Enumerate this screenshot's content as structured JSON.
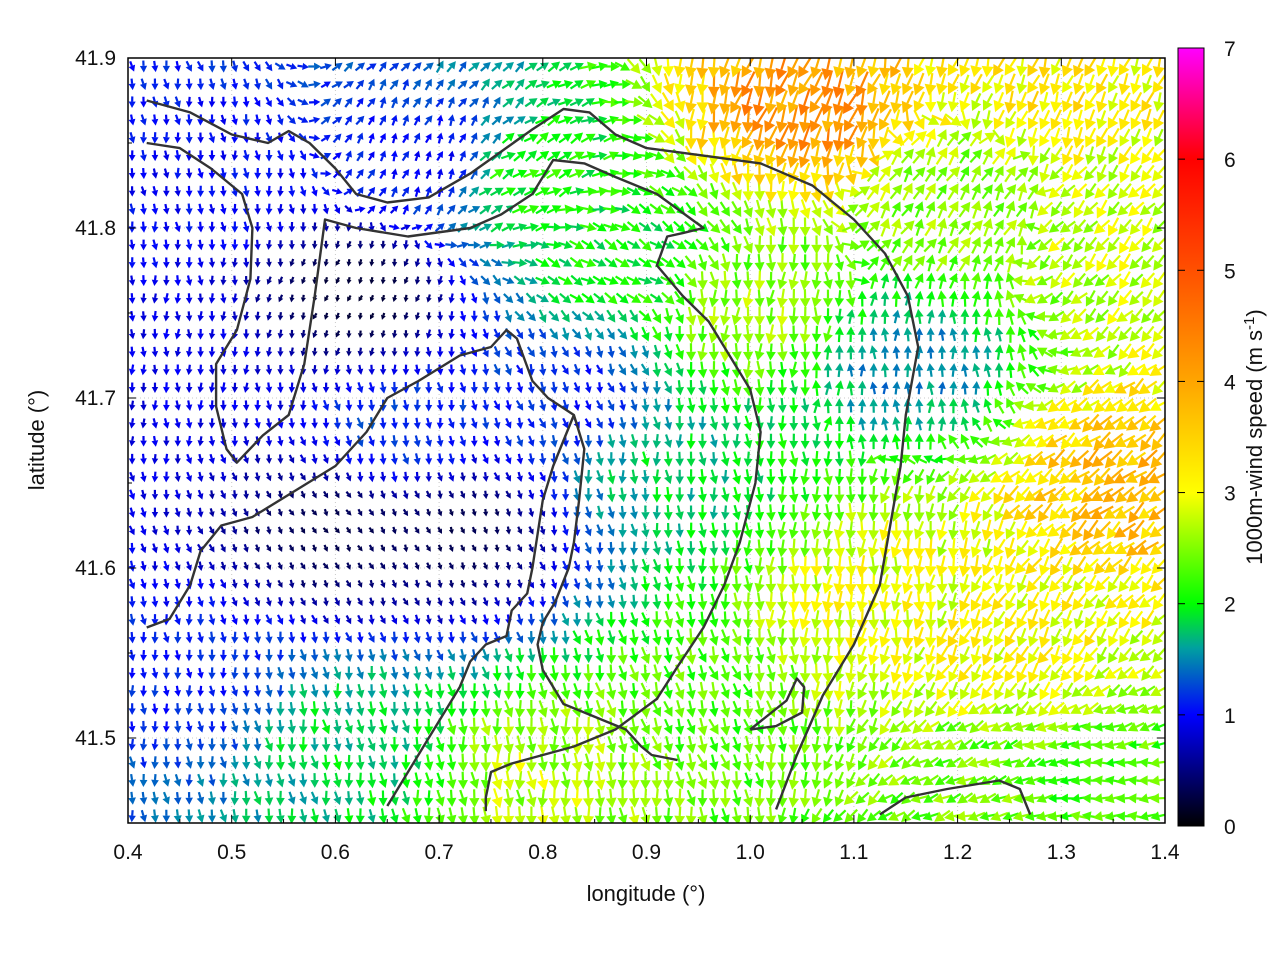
{
  "chart_data": {
    "type": "quiver",
    "xlabel": "longitude (°)",
    "ylabel": "latitude (°)",
    "xlim": [
      0.4,
      1.4
    ],
    "ylim": [
      41.45,
      41.9
    ],
    "x_ticks": [
      "0.4",
      "0.5",
      "0.6",
      "0.7",
      "0.8",
      "0.9",
      "1.0",
      "1.1",
      "1.2",
      "1.3",
      "1.4"
    ],
    "y_ticks": [
      "41.5",
      "41.6",
      "41.7",
      "41.8",
      "41.9"
    ],
    "grid": true,
    "colorbar": {
      "label_main": "1000m-wind speed (m s",
      "label_sup": "-1",
      "label_close": ")",
      "range": [
        0,
        7
      ],
      "ticks": [
        "0",
        "1",
        "2",
        "3",
        "4",
        "5",
        "6",
        "7"
      ],
      "stops": [
        {
          "v": 0,
          "c": "#000000"
        },
        {
          "v": 1,
          "c": "#0000ff"
        },
        {
          "v": 1.6,
          "c": "#00a0a0"
        },
        {
          "v": 2,
          "c": "#00ff00"
        },
        {
          "v": 3,
          "c": "#ffff00"
        },
        {
          "v": 4,
          "c": "#ffa500"
        },
        {
          "v": 5,
          "c": "#ff5000"
        },
        {
          "v": 6,
          "c": "#ff0000"
        },
        {
          "v": 7,
          "c": "#ff00ff"
        }
      ]
    },
    "wind_field": {
      "lon_step": 0.011,
      "lat_step": 0.0105,
      "regions": [
        {
          "lon": 0.45,
          "lat": 41.72,
          "speed": 0.9,
          "dir_deg": 180
        },
        {
          "lon": 0.47,
          "lat": 41.82,
          "speed": 1.0,
          "dir_deg": 175
        },
        {
          "lon": 0.6,
          "lat": 41.62,
          "speed": 0.3,
          "dir_deg": 150
        },
        {
          "lon": 0.62,
          "lat": 41.76,
          "speed": 0.2,
          "dir_deg": 200
        },
        {
          "lon": 0.72,
          "lat": 41.62,
          "speed": 0.3,
          "dir_deg": 160
        },
        {
          "lon": 0.66,
          "lat": 41.68,
          "speed": 1.2,
          "dir_deg": 170
        },
        {
          "lon": 0.7,
          "lat": 41.84,
          "speed": 1.0,
          "dir_deg": 20
        },
        {
          "lon": 0.83,
          "lat": 41.7,
          "speed": 1.1,
          "dir_deg": 160
        },
        {
          "lon": 0.78,
          "lat": 41.83,
          "speed": 2.1,
          "dir_deg": 60
        },
        {
          "lon": 0.88,
          "lat": 41.78,
          "speed": 2.0,
          "dir_deg": 120
        },
        {
          "lon": 0.92,
          "lat": 41.66,
          "speed": 1.8,
          "dir_deg": 175
        },
        {
          "lon": 0.6,
          "lat": 41.5,
          "speed": 1.8,
          "dir_deg": 170
        },
        {
          "lon": 0.47,
          "lat": 41.53,
          "speed": 1.1,
          "dir_deg": 175
        },
        {
          "lon": 0.8,
          "lat": 41.48,
          "speed": 2.7,
          "dir_deg": 175
        },
        {
          "lon": 0.95,
          "lat": 41.52,
          "speed": 2.3,
          "dir_deg": 160
        },
        {
          "lon": 1.0,
          "lat": 41.75,
          "speed": 2.6,
          "dir_deg": 185
        },
        {
          "lon": 1.05,
          "lat": 41.87,
          "speed": 4.2,
          "dir_deg": 200
        },
        {
          "lon": 1.15,
          "lat": 41.72,
          "speed": 1.5,
          "dir_deg": 0
        },
        {
          "lon": 1.2,
          "lat": 41.82,
          "speed": 2.5,
          "dir_deg": 30
        },
        {
          "lon": 1.12,
          "lat": 41.58,
          "speed": 3.0,
          "dir_deg": 185
        },
        {
          "lon": 1.25,
          "lat": 41.55,
          "speed": 3.1,
          "dir_deg": 210
        },
        {
          "lon": 1.36,
          "lat": 41.65,
          "speed": 3.7,
          "dir_deg": 230
        },
        {
          "lon": 1.36,
          "lat": 41.8,
          "speed": 2.8,
          "dir_deg": 220
        },
        {
          "lon": 1.3,
          "lat": 41.88,
          "speed": 3.2,
          "dir_deg": 200
        },
        {
          "lon": 1.25,
          "lat": 41.48,
          "speed": 2.4,
          "dir_deg": 250
        },
        {
          "lon": 1.33,
          "lat": 41.47,
          "speed": 2.2,
          "dir_deg": 270
        }
      ]
    },
    "contours": [
      [
        [
          0.418,
          41.875
        ],
        [
          0.46,
          41.868
        ],
        [
          0.5,
          41.855
        ],
        [
          0.535,
          41.85
        ],
        [
          0.555,
          41.857
        ],
        [
          0.575,
          41.85
        ],
        [
          0.6,
          41.835
        ],
        [
          0.62,
          41.82
        ],
        [
          0.65,
          41.815
        ],
        [
          0.69,
          41.818
        ],
        [
          0.73,
          41.832
        ],
        [
          0.76,
          41.845
        ],
        [
          0.79,
          41.858
        ],
        [
          0.82,
          41.87
        ],
        [
          0.845,
          41.868
        ],
        [
          0.87,
          41.855
        ],
        [
          0.9,
          41.847
        ],
        [
          0.95,
          41.843
        ],
        [
          1.01,
          41.838
        ],
        [
          1.06,
          41.825
        ],
        [
          1.1,
          41.805
        ],
        [
          1.13,
          41.785
        ],
        [
          1.152,
          41.76
        ],
        [
          1.162,
          41.73
        ],
        [
          1.15,
          41.69
        ],
        [
          1.145,
          41.66
        ],
        [
          1.135,
          41.625
        ],
        [
          1.125,
          41.59
        ],
        [
          1.1,
          41.555
        ],
        [
          1.07,
          41.525
        ],
        [
          1.045,
          41.49
        ],
        [
          1.025,
          41.458
        ]
      ],
      [
        [
          0.418,
          41.85
        ],
        [
          0.45,
          41.847
        ],
        [
          0.48,
          41.835
        ],
        [
          0.51,
          41.82
        ],
        [
          0.52,
          41.8
        ],
        [
          0.518,
          41.77
        ],
        [
          0.505,
          41.74
        ],
        [
          0.485,
          41.72
        ],
        [
          0.485,
          41.695
        ],
        [
          0.495,
          41.67
        ],
        [
          0.505,
          41.662
        ],
        [
          0.53,
          41.678
        ],
        [
          0.555,
          41.69
        ],
        [
          0.57,
          41.72
        ],
        [
          0.58,
          41.76
        ],
        [
          0.59,
          41.805
        ],
        [
          0.62,
          41.8
        ],
        [
          0.67,
          41.795
        ],
        [
          0.73,
          41.8
        ],
        [
          0.76,
          41.808
        ],
        [
          0.79,
          41.82
        ],
        [
          0.81,
          41.84
        ],
        [
          0.84,
          41.838
        ],
        [
          0.87,
          41.83
        ],
        [
          0.91,
          41.82
        ],
        [
          0.955,
          41.8
        ],
        [
          0.935,
          41.797
        ],
        [
          0.92,
          41.795
        ],
        [
          0.91,
          41.778
        ],
        [
          0.935,
          41.76
        ],
        [
          0.96,
          41.745
        ],
        [
          0.98,
          41.725
        ],
        [
          1.0,
          41.705
        ],
        [
          1.01,
          41.68
        ],
        [
          1.005,
          41.65
        ],
        [
          0.99,
          41.615
        ],
        [
          0.975,
          41.59
        ],
        [
          0.955,
          41.565
        ],
        [
          0.93,
          41.542
        ],
        [
          0.91,
          41.523
        ],
        [
          0.87,
          41.505
        ],
        [
          0.83,
          41.495
        ],
        [
          0.8,
          41.49
        ],
        [
          0.77,
          41.485
        ],
        [
          0.75,
          41.48
        ],
        [
          0.745,
          41.465
        ],
        [
          0.745,
          41.457
        ]
      ],
      [
        [
          0.418,
          41.565
        ],
        [
          0.44,
          41.57
        ],
        [
          0.46,
          41.59
        ],
        [
          0.47,
          41.61
        ],
        [
          0.49,
          41.625
        ],
        [
          0.52,
          41.63
        ],
        [
          0.56,
          41.645
        ],
        [
          0.6,
          41.66
        ],
        [
          0.63,
          41.68
        ],
        [
          0.65,
          41.7
        ],
        [
          0.68,
          41.71
        ],
        [
          0.72,
          41.725
        ],
        [
          0.75,
          41.73
        ],
        [
          0.765,
          41.74
        ],
        [
          0.775,
          41.735
        ],
        [
          0.79,
          41.71
        ],
        [
          0.805,
          41.7
        ],
        [
          0.83,
          41.69
        ],
        [
          0.84,
          41.67
        ],
        [
          0.835,
          41.64
        ],
        [
          0.83,
          41.615
        ],
        [
          0.825,
          41.6
        ],
        [
          0.812,
          41.58
        ],
        [
          0.8,
          41.568
        ],
        [
          0.795,
          41.555
        ],
        [
          0.8,
          41.54
        ],
        [
          0.81,
          41.53
        ],
        [
          0.82,
          41.52
        ],
        [
          0.84,
          41.515
        ],
        [
          0.86,
          41.51
        ],
        [
          0.88,
          41.505
        ],
        [
          0.895,
          41.495
        ],
        [
          0.905,
          41.49
        ],
        [
          0.93,
          41.487
        ]
      ],
      [
        [
          0.65,
          41.46
        ],
        [
          0.67,
          41.48
        ],
        [
          0.69,
          41.5
        ],
        [
          0.705,
          41.515
        ],
        [
          0.72,
          41.53
        ],
        [
          0.73,
          41.545
        ],
        [
          0.745,
          41.555
        ],
        [
          0.765,
          41.56
        ],
        [
          0.77,
          41.575
        ],
        [
          0.785,
          41.585
        ],
        [
          0.79,
          41.6
        ],
        [
          0.795,
          41.62
        ],
        [
          0.8,
          41.64
        ],
        [
          0.81,
          41.66
        ],
        [
          0.82,
          41.675
        ],
        [
          0.83,
          41.69
        ]
      ],
      [
        [
          1.125,
          41.455
        ],
        [
          1.15,
          41.465
        ],
        [
          1.19,
          41.47
        ],
        [
          1.24,
          41.475
        ],
        [
          1.26,
          41.47
        ],
        [
          1.27,
          41.455
        ]
      ],
      [
        [
          1.0,
          41.505
        ],
        [
          1.025,
          41.507
        ],
        [
          1.05,
          41.515
        ],
        [
          1.052,
          41.53
        ],
        [
          1.045,
          41.535
        ],
        [
          1.035,
          41.522
        ],
        [
          1.0,
          41.505
        ]
      ]
    ]
  }
}
